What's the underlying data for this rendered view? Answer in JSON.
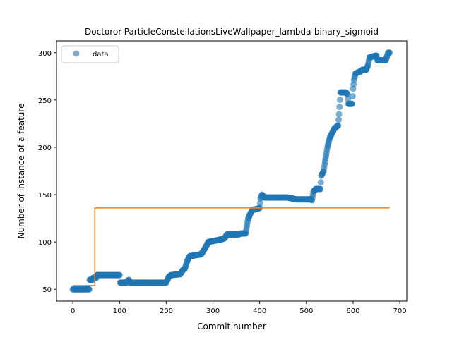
{
  "chart_data": {
    "type": "scatter",
    "title": "Doctoror-ParticleConstellationsLiveWallpaper_lambda-binary_sigmoid",
    "xlabel": "Commit number",
    "ylabel": "Number of instance of a feature",
    "xlim": [
      -35,
      715
    ],
    "ylim": [
      37.5,
      312.5
    ],
    "xticks": [
      0,
      100,
      200,
      300,
      400,
      500,
      600,
      700
    ],
    "yticks": [
      50,
      100,
      150,
      200,
      250,
      300
    ],
    "legend": {
      "position": "top-left",
      "entries": [
        "data"
      ]
    },
    "colors": {
      "data": "#1f77b4",
      "fit": "#ff7f0e"
    },
    "series": [
      {
        "name": "data",
        "kind": "scatter",
        "segments": [
          [
            0,
            50
          ],
          [
            35,
            50
          ],
          [
            35,
            60
          ],
          [
            42,
            60
          ],
          [
            42,
            62
          ],
          [
            50,
            62
          ],
          [
            50,
            65
          ],
          [
            100,
            65
          ],
          [
            100,
            57
          ],
          [
            115,
            57
          ],
          [
            115,
            58
          ],
          [
            120,
            60
          ],
          [
            122,
            57
          ],
          [
            200,
            57
          ],
          [
            205,
            63
          ],
          [
            210,
            65
          ],
          [
            230,
            66
          ],
          [
            235,
            70
          ],
          [
            240,
            72
          ],
          [
            245,
            80
          ],
          [
            250,
            85
          ],
          [
            275,
            87
          ],
          [
            285,
            95
          ],
          [
            290,
            100
          ],
          [
            320,
            103
          ],
          [
            325,
            104
          ],
          [
            330,
            108
          ],
          [
            355,
            108
          ],
          [
            360,
            109
          ],
          [
            370,
            109
          ],
          [
            375,
            124
          ],
          [
            380,
            130
          ],
          [
            385,
            134
          ],
          [
            395,
            135
          ],
          [
            400,
            136
          ],
          [
            402,
            146
          ],
          [
            405,
            150
          ],
          [
            410,
            147
          ],
          [
            450,
            147
          ],
          [
            460,
            147
          ],
          [
            478,
            145
          ],
          [
            510,
            145
          ],
          [
            512,
            144
          ],
          [
            515,
            153
          ],
          [
            520,
            156
          ],
          [
            530,
            156
          ],
          [
            532,
            170
          ],
          [
            537,
            175
          ],
          [
            540,
            185
          ],
          [
            545,
            200
          ],
          [
            550,
            210
          ],
          [
            555,
            215
          ],
          [
            560,
            220
          ],
          [
            565,
            222
          ],
          [
            568,
            223
          ],
          [
            570,
            235
          ],
          [
            573,
            258
          ],
          [
            585,
            258
          ],
          [
            588,
            256
          ],
          [
            590,
            246
          ],
          [
            598,
            246
          ],
          [
            600,
            262
          ],
          [
            602,
            271
          ],
          [
            605,
            278
          ],
          [
            615,
            280
          ],
          [
            620,
            282
          ],
          [
            628,
            282
          ],
          [
            632,
            287
          ],
          [
            635,
            295
          ],
          [
            650,
            297
          ],
          [
            652,
            292
          ],
          [
            670,
            292
          ],
          [
            675,
            300
          ],
          [
            678,
            300
          ]
        ]
      },
      {
        "kind": "line",
        "points": [
          [
            0,
            54
          ],
          [
            47,
            54
          ],
          [
            47,
            136
          ],
          [
            678,
            136
          ]
        ]
      }
    ]
  }
}
